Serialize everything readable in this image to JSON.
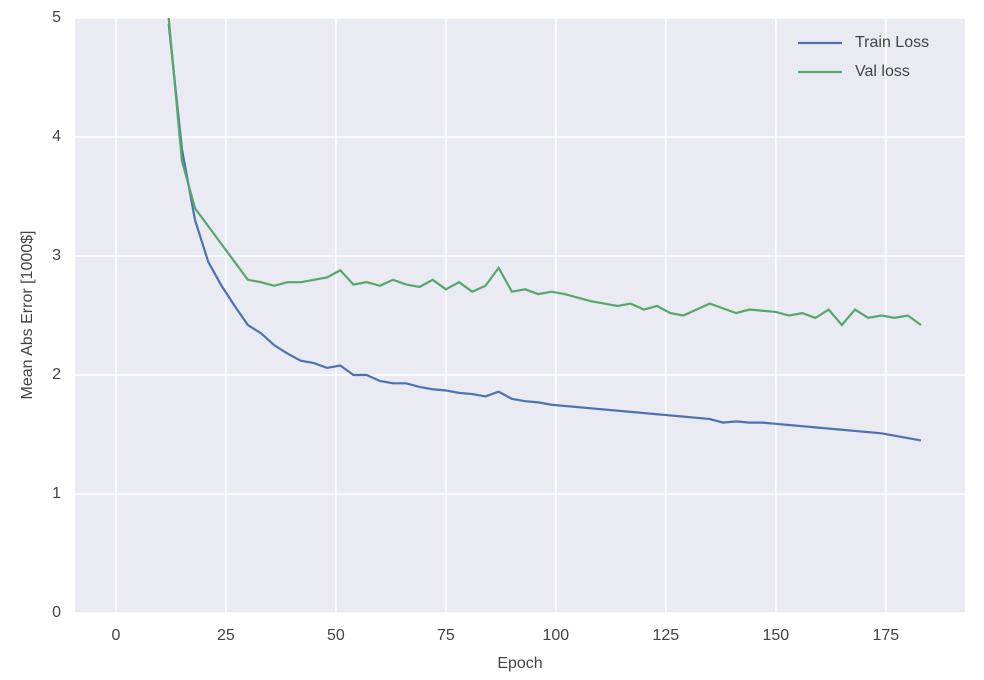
{
  "chart_data": {
    "type": "line",
    "xlabel": "Epoch",
    "ylabel": "Mean Abs Error [1000$]",
    "x": [
      12,
      15,
      18,
      21,
      24,
      27,
      30,
      33,
      36,
      39,
      42,
      45,
      48,
      51,
      54,
      57,
      60,
      63,
      66,
      69,
      72,
      75,
      78,
      81,
      84,
      87,
      90,
      93,
      96,
      99,
      102,
      105,
      108,
      111,
      114,
      117,
      120,
      123,
      126,
      129,
      132,
      135,
      138,
      141,
      144,
      147,
      150,
      153,
      156,
      159,
      162,
      165,
      168,
      171,
      174,
      177,
      180,
      183
    ],
    "series": [
      {
        "name": "Train Loss",
        "color": "#4c72b0",
        "values": [
          4.95,
          3.9,
          3.3,
          2.95,
          2.75,
          2.58,
          2.42,
          2.35,
          2.25,
          2.18,
          2.12,
          2.1,
          2.06,
          2.08,
          2.0,
          2.0,
          1.95,
          1.93,
          1.93,
          1.9,
          1.88,
          1.87,
          1.85,
          1.84,
          1.82,
          1.86,
          1.8,
          1.78,
          1.77,
          1.75,
          1.74,
          1.73,
          1.72,
          1.71,
          1.7,
          1.69,
          1.68,
          1.67,
          1.66,
          1.65,
          1.64,
          1.63,
          1.6,
          1.61,
          1.6,
          1.6,
          1.59,
          1.58,
          1.57,
          1.56,
          1.55,
          1.54,
          1.53,
          1.52,
          1.51,
          1.49,
          1.47,
          1.45
        ]
      },
      {
        "name": "Val loss",
        "color": "#55a868",
        "values": [
          5.0,
          3.8,
          3.4,
          3.25,
          3.1,
          2.95,
          2.8,
          2.78,
          2.75,
          2.78,
          2.78,
          2.8,
          2.82,
          2.88,
          2.76,
          2.78,
          2.75,
          2.8,
          2.76,
          2.74,
          2.8,
          2.72,
          2.78,
          2.7,
          2.75,
          2.9,
          2.7,
          2.72,
          2.68,
          2.7,
          2.68,
          2.65,
          2.62,
          2.6,
          2.58,
          2.6,
          2.55,
          2.58,
          2.52,
          2.5,
          2.55,
          2.6,
          2.56,
          2.52,
          2.55,
          2.54,
          2.53,
          2.5,
          2.52,
          2.48,
          2.55,
          2.42,
          2.55,
          2.48,
          2.5,
          2.48,
          2.5,
          2.42
        ]
      }
    ],
    "xlim": [
      -9.3,
      193
    ],
    "xticks": [
      0,
      25,
      50,
      75,
      100,
      125,
      150,
      175
    ],
    "ylim": [
      0,
      5
    ],
    "yticks": [
      0,
      1,
      2,
      3,
      4,
      5
    ],
    "grid": true,
    "legend": "upper right"
  }
}
